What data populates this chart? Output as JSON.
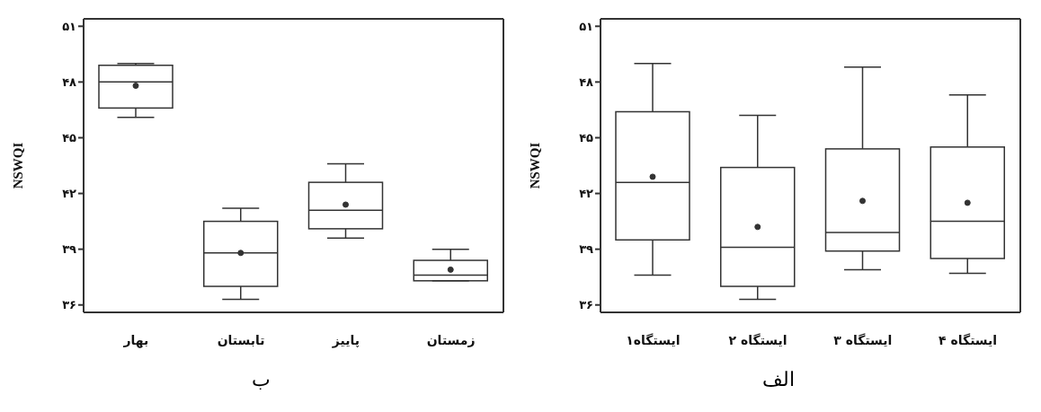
{
  "chart_data": [
    {
      "type": "box",
      "ylabel": "NSWQI",
      "annotations": [
        "الف"
      ],
      "categories": [
        "ایستگاه۱",
        "ایستگاه ۲",
        "ایستگاه ۳",
        "ایستگاه ۴"
      ],
      "boxes": [
        {
          "low": 37.6,
          "q1": 39.5,
          "median": 42.6,
          "q3": 46.4,
          "high": 49.0,
          "mean": 42.9
        },
        {
          "low": 36.3,
          "q1": 37.0,
          "median": 39.1,
          "q3": 43.4,
          "high": 46.2,
          "mean": 40.2
        },
        {
          "low": 37.9,
          "q1": 38.9,
          "median": 39.9,
          "q3": 44.4,
          "high": 48.8,
          "mean": 41.6
        },
        {
          "low": 37.7,
          "q1": 38.5,
          "median": 40.5,
          "q3": 44.5,
          "high": 47.3,
          "mean": 41.5
        }
      ],
      "ylim": [
        35.6,
        51.4
      ],
      "yticks": [
        {
          "value": 36,
          "label": "۳۶"
        },
        {
          "value": 39,
          "label": "۳۹"
        },
        {
          "value": 42,
          "label": "۴۲"
        },
        {
          "value": 45,
          "label": "۴۵"
        },
        {
          "value": 48,
          "label": "۴۸"
        },
        {
          "value": 51,
          "label": "۵۱"
        }
      ],
      "grid": false,
      "legend": false
    },
    {
      "type": "box",
      "ylabel": "NSWQI",
      "annotations": [
        "ب"
      ],
      "categories": [
        "بهار",
        "تابستان",
        "پاییز",
        "زمستان"
      ],
      "boxes": [
        {
          "low": 46.1,
          "q1": 46.6,
          "median": 48.0,
          "q3": 48.9,
          "high": 49.0,
          "mean": 47.8
        },
        {
          "low": 36.3,
          "q1": 37.0,
          "median": 38.8,
          "q3": 40.5,
          "high": 41.2,
          "mean": 38.8
        },
        {
          "low": 39.6,
          "q1": 40.1,
          "median": 41.1,
          "q3": 42.6,
          "high": 43.6,
          "mean": 41.4
        },
        {
          "low": 37.3,
          "q1": 37.3,
          "median": 37.6,
          "q3": 38.4,
          "high": 39.0,
          "mean": 37.9
        }
      ],
      "ylim": [
        35.6,
        51.4
      ],
      "yticks": [
        {
          "value": 36,
          "label": "۳۶"
        },
        {
          "value": 39,
          "label": "۳۹"
        },
        {
          "value": 42,
          "label": "۴۲"
        },
        {
          "value": 45,
          "label": "۴۵"
        },
        {
          "value": 48,
          "label": "۴۸"
        },
        {
          "value": 51,
          "label": "۵۱"
        }
      ],
      "grid": false,
      "legend": false
    }
  ]
}
